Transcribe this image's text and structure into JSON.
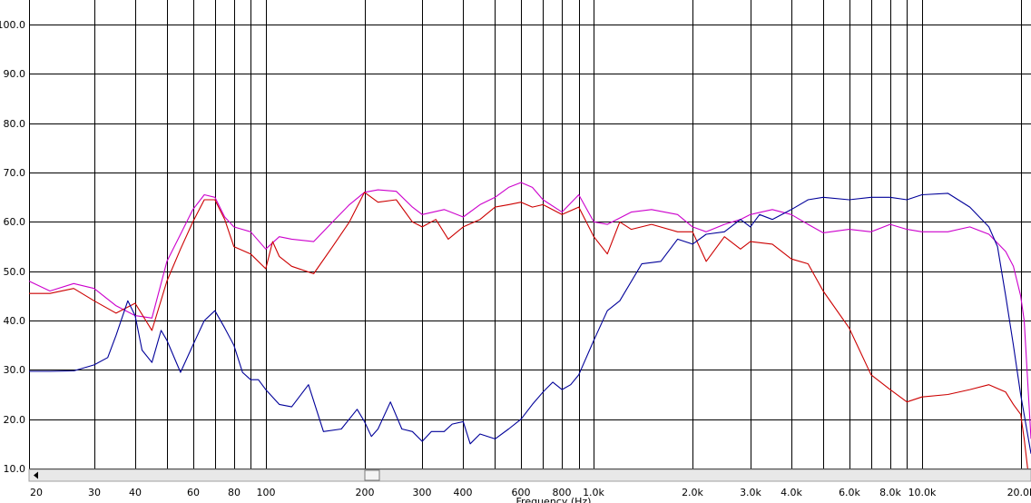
{
  "chart_data": {
    "type": "line",
    "title": "",
    "xlabel": "Frequency (Hz)",
    "ylabel": "",
    "xscale": "log",
    "xlim": [
      19,
      21500
    ],
    "ylim": [
      10,
      105
    ],
    "grid": true,
    "yticks": [
      {
        "value": 10,
        "label": "10.0"
      },
      {
        "value": 20,
        "label": "20.0"
      },
      {
        "value": 30,
        "label": "30.0"
      },
      {
        "value": 40,
        "label": "40.0"
      },
      {
        "value": 50,
        "label": "50.0"
      },
      {
        "value": 60,
        "label": "60.0"
      },
      {
        "value": 70,
        "label": "70.0"
      },
      {
        "value": 80,
        "label": "80.0"
      },
      {
        "value": 90,
        "label": "90.0"
      },
      {
        "value": 100,
        "label": "100.0"
      }
    ],
    "xticks": [
      {
        "value": 20,
        "label": "20"
      },
      {
        "value": 30,
        "label": "30"
      },
      {
        "value": 40,
        "label": "40"
      },
      {
        "value": 60,
        "label": "60"
      },
      {
        "value": 80,
        "label": "80"
      },
      {
        "value": 100,
        "label": "100"
      },
      {
        "value": 200,
        "label": "200"
      },
      {
        "value": 300,
        "label": "300"
      },
      {
        "value": 400,
        "label": "400"
      },
      {
        "value": 600,
        "label": "600"
      },
      {
        "value": 800,
        "label": "800"
      },
      {
        "value": 1000,
        "label": "1.0k"
      },
      {
        "value": 2000,
        "label": "2.0k"
      },
      {
        "value": 3000,
        "label": "3.0k"
      },
      {
        "value": 4000,
        "label": "4.0k"
      },
      {
        "value": 6000,
        "label": "6.0k"
      },
      {
        "value": 8000,
        "label": "8.0k"
      },
      {
        "value": 10000,
        "label": "10.0k"
      },
      {
        "value": 20000,
        "label": "20.0k"
      }
    ],
    "xgrid": [
      30,
      40,
      50,
      60,
      70,
      80,
      90,
      100,
      200,
      300,
      400,
      500,
      600,
      700,
      800,
      900,
      1000,
      2000,
      3000,
      4000,
      5000,
      6000,
      7000,
      8000,
      9000,
      10000,
      20000
    ],
    "series": [
      {
        "color": "#cc00cc",
        "x": [
          19,
          22,
          26,
          30,
          35,
          40,
          45,
          50,
          55,
          60,
          65,
          70,
          75,
          80,
          90,
          100,
          110,
          120,
          140,
          160,
          180,
          200,
          220,
          250,
          280,
          300,
          350,
          400,
          450,
          500,
          550,
          600,
          650,
          700,
          800,
          900,
          1000,
          1100,
          1300,
          1500,
          1800,
          2000,
          2200,
          2500,
          2800,
          3000,
          3500,
          4000,
          4500,
          5000,
          6000,
          7000,
          8000,
          9000,
          10000,
          12000,
          14000,
          16000,
          18000,
          19000,
          20000,
          20500,
          21500
        ],
        "y": [
          48,
          46,
          47.5,
          46.5,
          43,
          41,
          40.5,
          52,
          57.5,
          62.5,
          65.5,
          65,
          61,
          59,
          58,
          54.5,
          57,
          56.5,
          56,
          60,
          63.5,
          66,
          66.5,
          66.2,
          63,
          61.5,
          62.5,
          61,
          63.5,
          65,
          67,
          68,
          67,
          64.5,
          62,
          65.5,
          60,
          59.5,
          62,
          62.5,
          61.5,
          59,
          58,
          59.5,
          60.5,
          61.5,
          62.5,
          61.5,
          59.5,
          57.8,
          58.5,
          58,
          59.5,
          58.5,
          58,
          58,
          59,
          57.5,
          54,
          51,
          45,
          40,
          16
        ]
      },
      {
        "color": "#cc0000",
        "x": [
          19,
          22,
          26,
          30,
          35,
          40,
          45,
          50,
          55,
          60,
          65,
          70,
          75,
          80,
          90,
          100,
          105,
          110,
          120,
          140,
          160,
          180,
          200,
          220,
          250,
          280,
          300,
          330,
          360,
          400,
          450,
          500,
          550,
          600,
          650,
          700,
          800,
          900,
          1000,
          1100,
          1200,
          1300,
          1500,
          1800,
          2000,
          2200,
          2500,
          2800,
          3000,
          3500,
          4000,
          4500,
          5000,
          6000,
          7000,
          8000,
          9000,
          10000,
          12000,
          14000,
          16000,
          18000,
          19000,
          20000,
          20500,
          21000
        ],
        "y": [
          45.5,
          45.5,
          46.5,
          44,
          41.5,
          43.5,
          38,
          48,
          54.5,
          60,
          64.5,
          64.5,
          60.5,
          55,
          53.5,
          50.5,
          56,
          53,
          51,
          49.5,
          55,
          60,
          66,
          64,
          64.5,
          60,
          59,
          60.5,
          56.5,
          59,
          60.5,
          63,
          63.5,
          64,
          63,
          63.5,
          61.5,
          63,
          57,
          53.5,
          60,
          58.5,
          59.5,
          58,
          58,
          52,
          57,
          54.5,
          56,
          55.5,
          52.5,
          51.5,
          46,
          38.5,
          29,
          26,
          23.5,
          24.5,
          25,
          26,
          27,
          25.5,
          23,
          21,
          16,
          10
        ]
      },
      {
        "color": "#000099",
        "x": [
          19,
          22,
          26,
          30,
          33,
          35,
          38,
          40,
          42,
          45,
          48,
          50,
          53,
          55,
          60,
          65,
          70,
          75,
          80,
          85,
          90,
          95,
          100,
          110,
          120,
          135,
          150,
          170,
          190,
          200,
          210,
          220,
          240,
          260,
          280,
          300,
          320,
          350,
          370,
          400,
          420,
          450,
          500,
          550,
          600,
          650,
          700,
          750,
          800,
          850,
          900,
          1000,
          1100,
          1200,
          1400,
          1600,
          1800,
          2000,
          2200,
          2500,
          2800,
          3000,
          3200,
          3500,
          4000,
          4500,
          5000,
          6000,
          7000,
          8000,
          9000,
          10000,
          12000,
          14000,
          16000,
          17000,
          18000,
          19000,
          20000,
          21500
        ],
        "y": [
          29.7,
          29.7,
          29.8,
          31,
          32.5,
          37,
          44,
          41,
          34,
          31.5,
          38,
          36,
          32,
          29.5,
          35,
          40,
          42,
          38.5,
          35,
          29.5,
          28,
          28,
          26,
          23,
          22.5,
          27,
          17.5,
          18,
          22,
          19.5,
          16.5,
          18,
          23.5,
          18,
          17.5,
          15.5,
          17.5,
          17.5,
          19,
          19.5,
          15,
          17,
          16,
          18,
          20,
          23,
          25.5,
          27.5,
          26,
          27,
          29,
          36,
          42,
          44,
          51.5,
          52,
          56.5,
          55.5,
          57.5,
          58,
          60.5,
          59,
          61.5,
          60.5,
          62.5,
          64.5,
          65,
          64.5,
          65,
          65,
          64.5,
          65.5,
          65.8,
          63,
          59,
          55,
          45,
          35,
          25,
          13
        ]
      }
    ]
  }
}
